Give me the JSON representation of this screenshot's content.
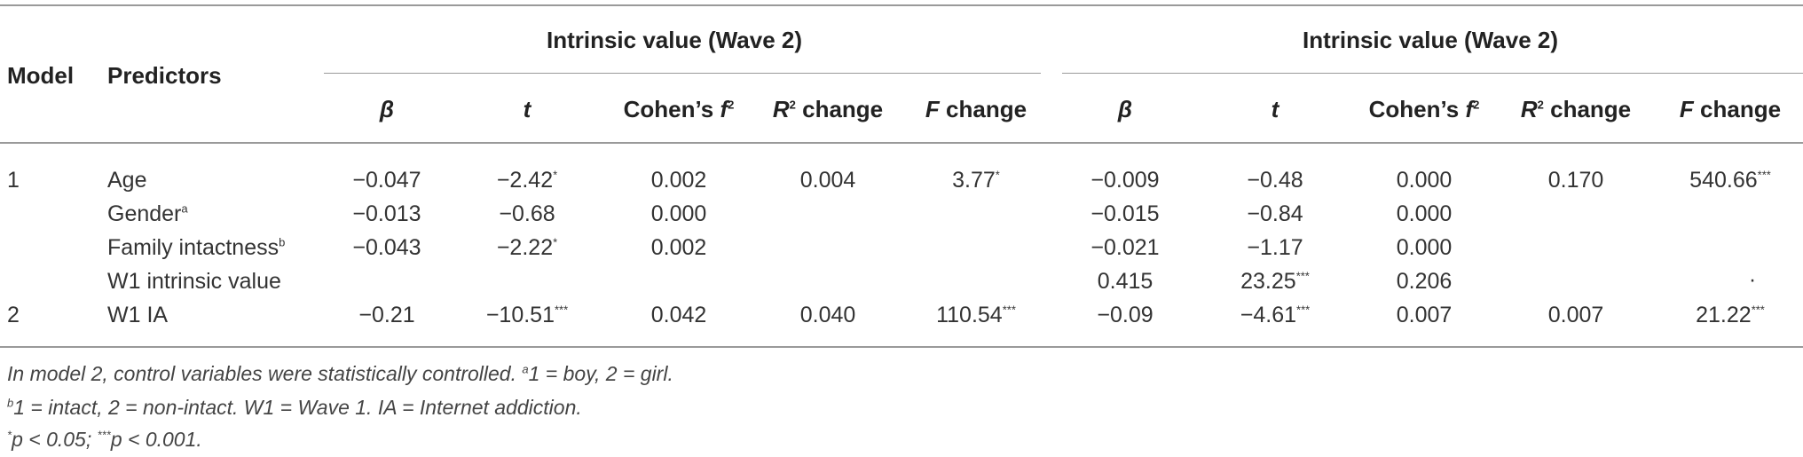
{
  "header": {
    "model": "Model",
    "predictors": "Predictors",
    "group_left": "Intrinsic value (Wave 2)",
    "group_right": "Intrinsic value (Wave 2)",
    "beta": "β",
    "t": "t",
    "cohens": "Cohen’s",
    "cohens_f": "f",
    "cohens_sup": "2",
    "r_letter": "R",
    "r_sup": "2",
    "r_change": "change",
    "f_letter": "F",
    "f_change": "change"
  },
  "rows": [
    {
      "model": "1",
      "predictor": "Age",
      "pred_sup": "",
      "b1": "−0.047",
      "t1": "−2.42",
      "t1s": "*",
      "f1": "0.002",
      "r1": "0.004",
      "fc1": "3.77",
      "fc1s": "*",
      "b2": "−0.009",
      "t2": "−0.48",
      "t2s": "",
      "f2": "0.000",
      "r2": "0.170",
      "fc2": "540.66",
      "fc2s": "***"
    },
    {
      "model": "",
      "predictor": "Gender",
      "pred_sup": "a",
      "b1": "−0.013",
      "t1": "−0.68",
      "t1s": "",
      "f1": "0.000",
      "r1": "",
      "fc1": "",
      "fc1s": "",
      "b2": "−0.015",
      "t2": "−0.84",
      "t2s": "",
      "f2": "0.000",
      "r2": "",
      "fc2": "",
      "fc2s": ""
    },
    {
      "model": "",
      "predictor": "Family intactness",
      "pred_sup": "b",
      "b1": "−0.043",
      "t1": "−2.22",
      "t1s": "*",
      "f1": "0.002",
      "r1": "",
      "fc1": "",
      "fc1s": "",
      "b2": "−0.021",
      "t2": "−1.17",
      "t2s": "",
      "f2": "0.000",
      "r2": "",
      "fc2": "",
      "fc2s": ""
    },
    {
      "model": "",
      "predictor": "W1 intrinsic value",
      "pred_sup": "",
      "b1": "",
      "t1": "",
      "t1s": "",
      "f1": "",
      "r1": "",
      "fc1": "",
      "fc1s": "",
      "b2": "0.415",
      "t2": "23.25",
      "t2s": "***",
      "f2": "0.206",
      "r2": "",
      "fc2": "·",
      "fc2s": ""
    },
    {
      "model": "2",
      "predictor": "W1 IA",
      "pred_sup": "",
      "b1": "−0.21",
      "t1": "−10.51",
      "t1s": "***",
      "f1": "0.042",
      "r1": "0.040",
      "fc1": "110.54",
      "fc1s": "***",
      "b2": "−0.09",
      "t2": "−4.61",
      "t2s": "***",
      "f2": "0.007",
      "r2": "0.007",
      "fc2": "21.22",
      "fc2s": "***"
    }
  ],
  "notes": {
    "n1_text": "In model 2, control variables were statistically controlled. ",
    "n1_sup": "a",
    "n1_rest": "1 = boy, 2 = girl.",
    "n2_sup": "b",
    "n2_text": "1 = intact, 2 = non-intact. W1 = Wave 1. IA = Internet addiction.",
    "n3_sup1": "*",
    "n3_text1": "p < 0.05; ",
    "n3_sup2": "***",
    "n3_text2": "p < 0.001."
  }
}
